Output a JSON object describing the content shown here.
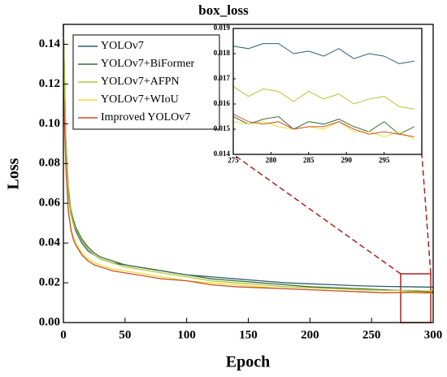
{
  "chart_data": [
    {
      "type": "line",
      "title": "box_loss",
      "x_label": "Epoch",
      "y_label": "Loss",
      "x": [
        0,
        2,
        4,
        6,
        8,
        10,
        15,
        20,
        25,
        30,
        40,
        50,
        60,
        70,
        80,
        90,
        100,
        120,
        140,
        160,
        180,
        200,
        220,
        240,
        260,
        280,
        300
      ],
      "series": [
        {
          "name": "YOLOv7",
          "color": "#2e5f6e",
          "values": [
            0.15,
            0.09,
            0.065,
            0.055,
            0.05,
            0.046,
            0.04,
            0.036,
            0.034,
            0.032,
            0.03,
            0.029,
            0.028,
            0.027,
            0.026,
            0.025,
            0.024,
            0.023,
            0.022,
            0.021,
            0.02,
            0.0195,
            0.019,
            0.0185,
            0.0182,
            0.018,
            0.0178
          ]
        },
        {
          "name": "YOLOv7+BiFormer",
          "color": "#3a6e3a",
          "values": [
            0.15,
            0.092,
            0.068,
            0.057,
            0.052,
            0.048,
            0.042,
            0.038,
            0.035,
            0.033,
            0.031,
            0.029,
            0.028,
            0.027,
            0.026,
            0.025,
            0.024,
            0.022,
            0.021,
            0.02,
            0.019,
            0.018,
            0.0175,
            0.017,
            0.0165,
            0.016,
            0.0155
          ]
        },
        {
          "name": "YOLOv7+AFPN",
          "color": "#b5c43a",
          "values": [
            0.15,
            0.09,
            0.066,
            0.056,
            0.05,
            0.047,
            0.041,
            0.037,
            0.034,
            0.032,
            0.03,
            0.028,
            0.027,
            0.026,
            0.025,
            0.024,
            0.023,
            0.021,
            0.02,
            0.019,
            0.018,
            0.0175,
            0.017,
            0.0165,
            0.0162,
            0.0162,
            0.0158
          ]
        },
        {
          "name": "YOLOv7+WIoU",
          "color": "#e8e030",
          "values": [
            0.12,
            0.08,
            0.058,
            0.048,
            0.043,
            0.04,
            0.035,
            0.032,
            0.03,
            0.029,
            0.027,
            0.026,
            0.025,
            0.024,
            0.023,
            0.022,
            0.021,
            0.02,
            0.019,
            0.018,
            0.017,
            0.0165,
            0.016,
            0.0155,
            0.015,
            0.015,
            0.0147
          ]
        },
        {
          "name": "Improved YOLOv7",
          "color": "#c8502a",
          "values": [
            0.12,
            0.078,
            0.056,
            0.047,
            0.042,
            0.039,
            0.034,
            0.031,
            0.029,
            0.028,
            0.026,
            0.025,
            0.024,
            0.023,
            0.022,
            0.0215,
            0.021,
            0.019,
            0.018,
            0.0175,
            0.017,
            0.0165,
            0.016,
            0.0155,
            0.015,
            0.0152,
            0.015
          ]
        }
      ],
      "xlim": [
        0,
        300
      ],
      "xticks": [
        0,
        50,
        100,
        150,
        200,
        250,
        300
      ],
      "ylim": [
        0,
        0.15
      ],
      "yticks": [
        {
          "value": 0,
          "label": "0.00"
        },
        0.02,
        0.04,
        0.06,
        0.08,
        {
          "value": 0.1,
          "label": "0.10"
        },
        0.12,
        0.14
      ],
      "legend": "upper left"
    },
    {
      "type": "line",
      "x": [
        275,
        277,
        279,
        281,
        283,
        285,
        287,
        289,
        291,
        293,
        295,
        297,
        299
      ],
      "series": [
        {
          "color": "#2e5f6e",
          "values": [
            0.0183,
            0.0182,
            0.0184,
            0.0184,
            0.018,
            0.0181,
            0.0179,
            0.0182,
            0.0178,
            0.018,
            0.0179,
            0.0176,
            0.0177
          ]
        },
        {
          "color": "#3a6e3a",
          "values": [
            0.0155,
            0.0152,
            0.0154,
            0.0155,
            0.015,
            0.0153,
            0.0152,
            0.0154,
            0.0151,
            0.0149,
            0.0153,
            0.0148,
            0.0151
          ]
        },
        {
          "color": "#b5c43a",
          "values": [
            0.0167,
            0.0163,
            0.0166,
            0.0165,
            0.0161,
            0.0165,
            0.0162,
            0.0164,
            0.016,
            0.0162,
            0.0163,
            0.0159,
            0.0158
          ]
        },
        {
          "color": "#e8e030",
          "values": [
            0.0153,
            0.0152,
            0.0153,
            0.0151,
            0.015,
            0.0151,
            0.015,
            0.0153,
            0.0149,
            0.0149,
            0.0147,
            0.0149,
            0.0146
          ]
        },
        {
          "color": "#c8502a",
          "values": [
            0.0156,
            0.0153,
            0.0152,
            0.0153,
            0.015,
            0.0151,
            0.0151,
            0.0153,
            0.015,
            0.0148,
            0.0149,
            0.0148,
            0.0147
          ]
        }
      ],
      "xlim": [
        275,
        300
      ],
      "xticks": [
        275,
        280,
        285,
        290,
        295
      ],
      "ylim": [
        0.014,
        0.019
      ],
      "yticks": [
        0.014,
        0.015,
        0.016,
        0.017,
        0.018,
        0.019
      ]
    }
  ]
}
